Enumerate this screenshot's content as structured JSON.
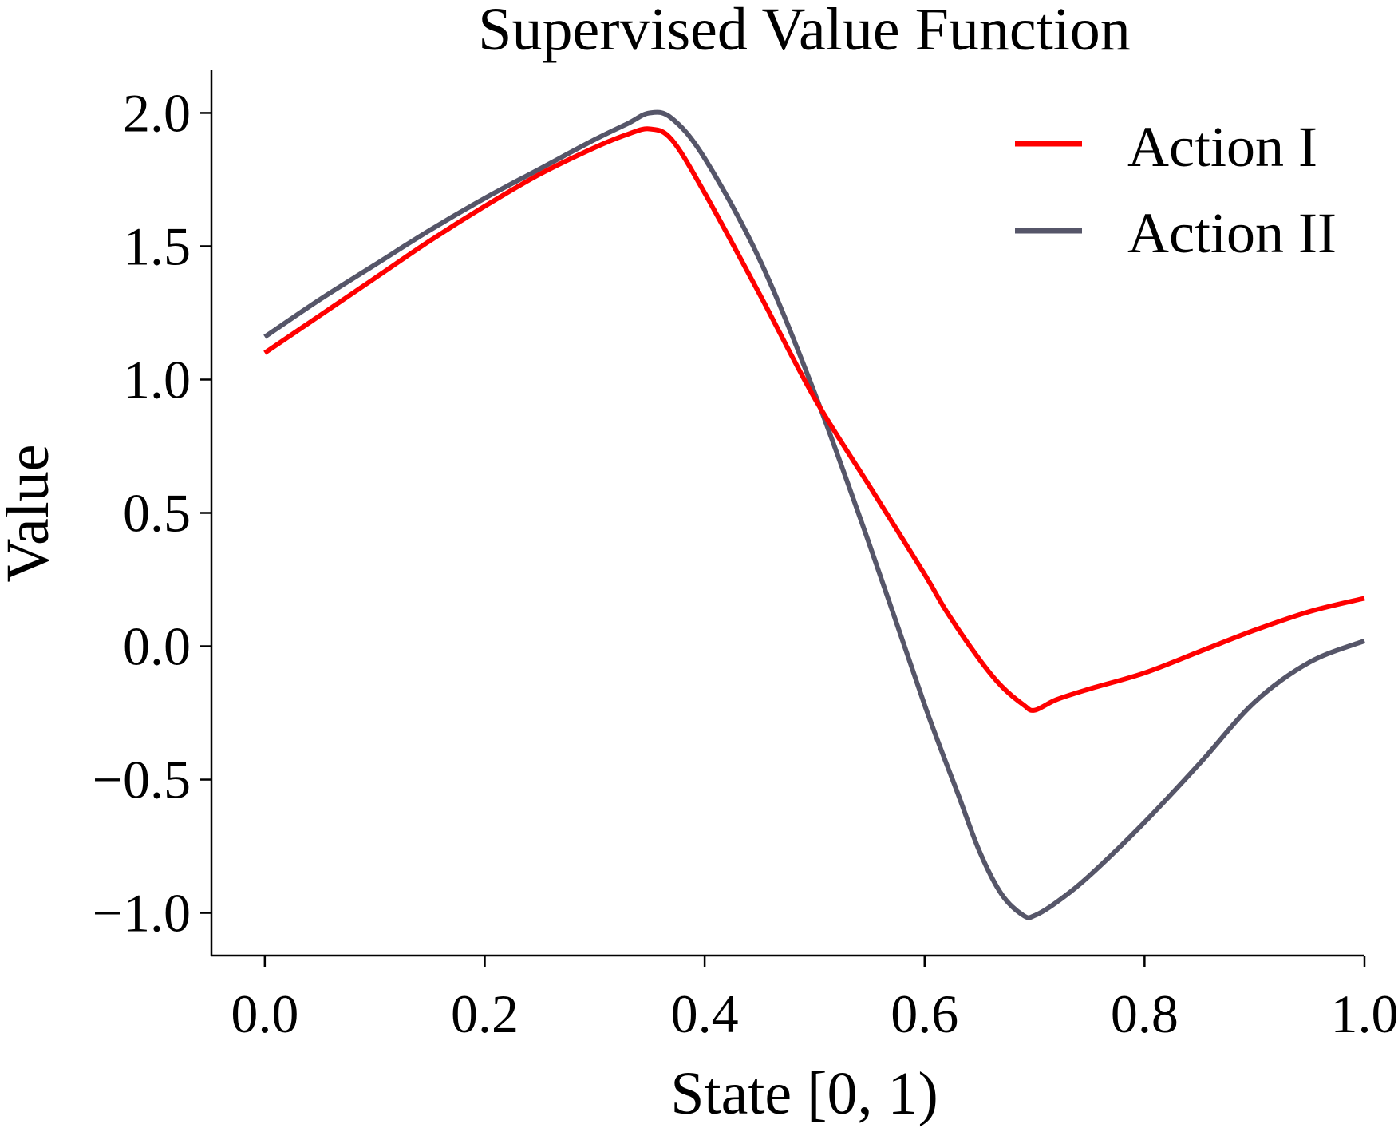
{
  "chart_data": {
    "type": "line",
    "title": "Supervised Value Function",
    "xlabel": "State [0, 1)",
    "ylabel": "Value",
    "xlim": [
      -0.0485,
      1.0
    ],
    "ylim": [
      -1.16,
      2.16
    ],
    "xticks": [
      0.0,
      0.2,
      0.4,
      0.6,
      0.8,
      1.0
    ],
    "xtick_labels": [
      "0.0",
      "0.2",
      "0.4",
      "0.6",
      "0.8",
      "1.0"
    ],
    "yticks": [
      -1.0,
      -0.5,
      0.0,
      0.5,
      1.0,
      1.5,
      2.0
    ],
    "ytick_labels": [
      "−1.0",
      "−0.5",
      "0.0",
      "0.5",
      "1.0",
      "1.5",
      "2.0"
    ],
    "grid": false,
    "legend_position": "top-right",
    "series": [
      {
        "name": "Action I",
        "color": "#ff0000",
        "x": [
          0.0,
          0.05,
          0.1,
          0.15,
          0.2,
          0.25,
          0.3,
          0.33,
          0.35,
          0.37,
          0.4,
          0.45,
          0.5,
          0.55,
          0.6,
          0.62,
          0.65,
          0.67,
          0.69,
          0.7,
          0.72,
          0.75,
          0.8,
          0.85,
          0.9,
          0.95,
          1.0
        ],
        "y": [
          1.1,
          1.24,
          1.38,
          1.52,
          1.65,
          1.77,
          1.87,
          1.92,
          1.94,
          1.9,
          1.7,
          1.32,
          0.93,
          0.6,
          0.27,
          0.13,
          -0.05,
          -0.15,
          -0.22,
          -0.24,
          -0.2,
          -0.16,
          -0.1,
          -0.02,
          0.06,
          0.13,
          0.18
        ]
      },
      {
        "name": "Action II",
        "color": "#565669",
        "x": [
          0.0,
          0.05,
          0.1,
          0.15,
          0.2,
          0.25,
          0.3,
          0.33,
          0.35,
          0.37,
          0.4,
          0.45,
          0.5,
          0.55,
          0.6,
          0.63,
          0.65,
          0.67,
          0.69,
          0.7,
          0.72,
          0.75,
          0.8,
          0.85,
          0.9,
          0.95,
          1.0
        ],
        "y": [
          1.16,
          1.3,
          1.43,
          1.56,
          1.68,
          1.79,
          1.9,
          1.96,
          2.0,
          1.98,
          1.83,
          1.45,
          0.95,
          0.38,
          -0.22,
          -0.55,
          -0.77,
          -0.93,
          -1.01,
          -1.01,
          -0.96,
          -0.86,
          -0.66,
          -0.44,
          -0.21,
          -0.06,
          0.02
        ]
      }
    ]
  }
}
